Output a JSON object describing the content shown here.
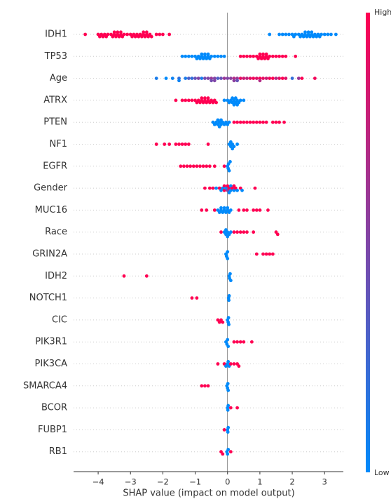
{
  "chart_data": {
    "type": "beeswarm",
    "x_label": "SHAP value (impact on model output)",
    "xlim": [
      -4.76,
      3.58
    ],
    "xticks": [
      {
        "value": -4,
        "label": "−4"
      },
      {
        "value": -3,
        "label": "−3"
      },
      {
        "value": -2,
        "label": "−2"
      },
      {
        "value": -1,
        "label": "−1"
      },
      0,
      1,
      2,
      3
    ],
    "grid": true,
    "colormap": {
      "low": "#008afb",
      "high": "#ff0052"
    },
    "colorbar_labels": {
      "high": "High",
      "low": "Low"
    },
    "series": [
      {
        "name": "IDH1",
        "values": [
          -4.4,
          -4.0,
          -3.95,
          -3.9,
          -3.85,
          -3.8,
          -3.75,
          -3.7,
          -3.6,
          -3.55,
          -3.5,
          -3.45,
          -3.4,
          -3.35,
          -3.3,
          -3.25,
          -3.2,
          -3.1,
          -3.0,
          -2.95,
          -2.9,
          -2.85,
          -2.8,
          -2.75,
          -2.7,
          -2.65,
          -2.6,
          -2.55,
          -2.5,
          -2.45,
          -2.4,
          -2.35,
          -2.2,
          -2.1,
          -2.0,
          -1.8,
          -3.5,
          -3.4,
          -3.3,
          -2.6,
          -2.5,
          1.3,
          1.6,
          1.7,
          1.8,
          1.9,
          2.0,
          2.05,
          2.1,
          2.2,
          2.25,
          2.3,
          2.35,
          2.4,
          2.45,
          2.5,
          2.55,
          2.6,
          2.65,
          2.7,
          2.75,
          2.8,
          2.85,
          2.9,
          3.0,
          3.1,
          3.2,
          3.35,
          2.4,
          2.5,
          2.6
        ],
        "feature_values": [
          1,
          1,
          1,
          1,
          1,
          1,
          1,
          1,
          1,
          1,
          1,
          1,
          1,
          1,
          1,
          1,
          1,
          1,
          1,
          1,
          1,
          1,
          1,
          1,
          1,
          1,
          1,
          1,
          1,
          1,
          1,
          1,
          1,
          1,
          1,
          1,
          1,
          1,
          1,
          1,
          1,
          0,
          0,
          0,
          0,
          0,
          0,
          0,
          0,
          0,
          0,
          0,
          0,
          0,
          0,
          0,
          0,
          0,
          0,
          0,
          0,
          0,
          0,
          0,
          0,
          0,
          0,
          0,
          0,
          0,
          0
        ]
      },
      {
        "name": "TP53",
        "values": [
          -1.4,
          -1.3,
          -1.2,
          -1.1,
          -1.0,
          -0.95,
          -0.9,
          -0.85,
          -0.8,
          -0.75,
          -0.7,
          -0.65,
          -0.6,
          -0.55,
          -0.5,
          -0.4,
          -0.3,
          -0.2,
          -0.1,
          -0.8,
          -0.7,
          -0.6,
          0.4,
          0.5,
          0.6,
          0.7,
          0.8,
          0.9,
          0.95,
          1.0,
          1.05,
          1.1,
          1.15,
          1.2,
          1.25,
          1.3,
          1.4,
          1.5,
          1.6,
          1.7,
          1.8,
          2.1,
          1.0,
          1.1,
          1.2
        ],
        "feature_values": [
          0,
          0,
          0,
          0,
          0,
          0,
          0,
          0,
          0,
          0,
          0,
          0,
          0,
          0,
          0,
          0,
          0,
          0,
          0,
          0,
          0,
          0,
          1,
          1,
          1,
          1,
          1,
          1,
          1,
          1,
          1,
          1,
          1,
          1,
          1,
          1,
          1,
          1,
          1,
          1,
          1,
          1,
          1,
          1,
          1
        ]
      },
      {
        "name": "Age",
        "values": [
          -2.2,
          -1.9,
          -1.7,
          -1.5,
          -1.3,
          -1.2,
          -1.1,
          -1.0,
          -0.9,
          -0.8,
          -0.7,
          -0.6,
          -0.5,
          -0.4,
          -0.3,
          -0.2,
          -0.1,
          0.0,
          0.1,
          0.2,
          0.3,
          0.4,
          0.5,
          0.6,
          0.7,
          0.8,
          0.9,
          1.0,
          1.1,
          1.2,
          1.3,
          1.4,
          1.5,
          1.6,
          1.7,
          1.8,
          2.0,
          2.2,
          2.3,
          2.7,
          -0.5,
          -0.4,
          0.2,
          0.3,
          -1.5,
          1.0
        ],
        "feature_values": [
          0.1,
          0.0,
          0.05,
          0.2,
          0.1,
          0.3,
          0.2,
          0.4,
          0.5,
          0.1,
          0.45,
          0.5,
          0.6,
          0.5,
          0.3,
          0.4,
          0.6,
          0.5,
          0.55,
          0.7,
          0.6,
          0.9,
          0.8,
          0.75,
          0.9,
          0.95,
          0.85,
          1,
          0.9,
          0.8,
          0.95,
          1,
          0.7,
          0.9,
          1,
          0.85,
          0.2,
          0.6,
          1,
          0.95,
          0.45,
          0.5,
          0.55,
          0.4,
          0.05,
          0.7
        ]
      },
      {
        "name": "ATRX",
        "values": [
          -1.6,
          -1.4,
          -1.3,
          -1.2,
          -1.1,
          -1.0,
          -0.95,
          -0.9,
          -0.85,
          -0.8,
          -0.75,
          -0.7,
          -0.65,
          -0.6,
          -0.55,
          -0.5,
          -0.45,
          -0.4,
          -0.35,
          -0.8,
          -0.7,
          -0.6,
          -0.1,
          0.0,
          0.05,
          0.1,
          0.15,
          0.2,
          0.25,
          0.3,
          0.35,
          0.4,
          0.5,
          0.2,
          0.25,
          0.3,
          0.15
        ],
        "feature_values": [
          1,
          1,
          1,
          1,
          1,
          1,
          1,
          1,
          1,
          1,
          1,
          1,
          1,
          1,
          1,
          1,
          1,
          1,
          1,
          1,
          1,
          1,
          0,
          0,
          0,
          0,
          0,
          0,
          0,
          0,
          0,
          0,
          0,
          0,
          0,
          0,
          0
        ]
      },
      {
        "name": "PTEN",
        "values": [
          -0.45,
          -0.4,
          -0.35,
          -0.3,
          -0.25,
          -0.2,
          -0.15,
          -0.1,
          -0.05,
          0.0,
          0.05,
          -0.3,
          -0.25,
          -0.2,
          0.2,
          0.3,
          0.4,
          0.5,
          0.6,
          0.7,
          0.8,
          0.9,
          1.0,
          1.1,
          1.2,
          1.4,
          1.5,
          1.6,
          1.75
        ],
        "feature_values": [
          0,
          0,
          0,
          0,
          0,
          0,
          0,
          0,
          0,
          0,
          0,
          0,
          0,
          0,
          1,
          1,
          1,
          1,
          1,
          1,
          1,
          1,
          1,
          1,
          1,
          1,
          1,
          1,
          1
        ]
      },
      {
        "name": "NF1",
        "values": [
          -2.2,
          -1.95,
          -1.8,
          -1.6,
          -1.5,
          -1.4,
          -1.3,
          -1.2,
          -0.6,
          0.05,
          0.1,
          0.15,
          0.2,
          0.1,
          0.15,
          0.3
        ],
        "feature_values": [
          1,
          1,
          1,
          1,
          1,
          1,
          1,
          1,
          1,
          0,
          0,
          0,
          0,
          0,
          0,
          0
        ]
      },
      {
        "name": "EGFR",
        "values": [
          -1.45,
          -1.35,
          -1.25,
          -1.15,
          -1.05,
          -0.95,
          -0.85,
          -0.75,
          -0.65,
          -0.55,
          -0.4,
          -0.1,
          0.0,
          0.02,
          0.05,
          0.08,
          0.03
        ],
        "feature_values": [
          1,
          1,
          1,
          1,
          1,
          1,
          1,
          1,
          1,
          1,
          1,
          1,
          0,
          0,
          0,
          0,
          0
        ]
      },
      {
        "name": "Gender",
        "values": [
          -0.7,
          -0.55,
          -0.45,
          -0.35,
          -0.25,
          -0.15,
          -0.1,
          -0.05,
          0,
          0.05,
          0.1,
          0.15,
          0.2,
          0.25,
          0.3,
          0.4,
          0.45,
          0.85,
          -0.2,
          0.0,
          0.1,
          0.2,
          -0.1,
          0.05
        ],
        "feature_values": [
          1,
          1,
          1,
          0,
          1,
          0,
          1,
          0,
          0.5,
          1,
          0,
          1,
          0,
          1,
          0,
          1,
          0,
          1,
          0,
          1,
          0,
          1,
          1,
          0
        ]
      },
      {
        "name": "MUC16",
        "values": [
          -0.3,
          -0.25,
          -0.2,
          -0.15,
          -0.1,
          -0.05,
          0.0,
          0.05,
          0.1,
          -0.2,
          -0.1,
          0.0,
          -0.8,
          -0.65,
          -0.4,
          0.35,
          0.5,
          0.6,
          0.8,
          0.9,
          1.0,
          1.25
        ],
        "feature_values": [
          0,
          0,
          0,
          0,
          0,
          0,
          0,
          0,
          0,
          0,
          0,
          0,
          1,
          1,
          1,
          1,
          1,
          1,
          1,
          1,
          1,
          1
        ]
      },
      {
        "name": "Race",
        "values": [
          0.2,
          0.3,
          0.4,
          0.5,
          0.6,
          0.8,
          1.5,
          1.55,
          -0.2,
          -0.1,
          -0.05,
          0,
          0.05,
          0.1,
          0,
          -0.05
        ],
        "feature_values": [
          1,
          1,
          1,
          1,
          1,
          1,
          1,
          1,
          1,
          0,
          0,
          0,
          0,
          0,
          0,
          0
        ]
      },
      {
        "name": "GRIN2A",
        "values": [
          -0.05,
          0,
          0.0,
          -0.03,
          0.9,
          1.1,
          1.2,
          1.3,
          1.4
        ],
        "feature_values": [
          0,
          0,
          0,
          0,
          1,
          1,
          1,
          1,
          1
        ]
      },
      {
        "name": "IDH2",
        "values": [
          -3.2,
          -2.5,
          0.05,
          0.08,
          0.1,
          0.06
        ],
        "feature_values": [
          1,
          1,
          0,
          0,
          0,
          0
        ]
      },
      {
        "name": "NOTCH1",
        "values": [
          -1.1,
          -0.95,
          0.03,
          0.05,
          0.04
        ],
        "feature_values": [
          1,
          1,
          0,
          0,
          0
        ]
      },
      {
        "name": "CIC",
        "values": [
          -0.25,
          -0.2,
          -0.15,
          -0.3,
          0.0,
          0.02,
          0.04,
          0.03
        ],
        "feature_values": [
          1,
          1,
          1,
          1,
          0,
          0,
          0,
          0
        ]
      },
      {
        "name": "PIK3R1",
        "values": [
          -0.05,
          0,
          0.02,
          -0.02,
          0.2,
          0.3,
          0.4,
          0.5,
          0.75
        ],
        "feature_values": [
          0,
          0,
          0,
          0,
          1,
          1,
          1,
          1,
          1
        ]
      },
      {
        "name": "PIK3CA",
        "values": [
          -0.3,
          -0.1,
          0.1,
          0.2,
          0.3,
          0.35,
          -0.05,
          0,
          0.02,
          0.05
        ],
        "feature_values": [
          1,
          1,
          1,
          1,
          1,
          1,
          0,
          0,
          0,
          0
        ]
      },
      {
        "name": "SMARCA4",
        "values": [
          -0.8,
          -0.7,
          -0.6,
          -0.02,
          0,
          0.02,
          0.01
        ],
        "feature_values": [
          1,
          1,
          1,
          0,
          0,
          0,
          0
        ]
      },
      {
        "name": "BCOR",
        "values": [
          0,
          0.02,
          0.01,
          0.1,
          0.3
        ],
        "feature_values": [
          0,
          0,
          0,
          1,
          1
        ]
      },
      {
        "name": "FUBP1",
        "values": [
          0,
          0.01,
          0.02,
          -0.1
        ],
        "feature_values": [
          0,
          0,
          0,
          1
        ]
      },
      {
        "name": "RB1",
        "values": [
          -0.2,
          -0.15,
          0.1,
          0,
          0.02,
          -0.02
        ],
        "feature_values": [
          1,
          1,
          1,
          0,
          0,
          0
        ]
      }
    ]
  }
}
